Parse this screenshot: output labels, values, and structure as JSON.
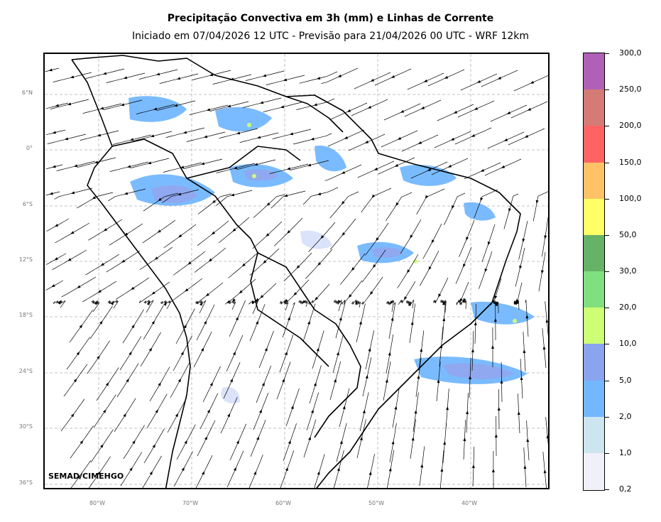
{
  "title": "Precipitação Convectiva em 3h (mm) e Linhas de Corrente",
  "subtitle": "Iniciado em 07/04/2026 12 UTC - Previsão para 21/04/2026 00 UTC - WRF 12km",
  "credit": "SEMAD/CIMEHGO",
  "latitude_labels": [
    "6°N",
    "0°",
    "6°S",
    "12°S",
    "18°S",
    "24°S",
    "30°S",
    "36°S"
  ],
  "longitude_labels": [
    "80°W",
    "70°W",
    "60°W",
    "50°W",
    "40°W"
  ],
  "colorbar": {
    "labels": [
      "300,0",
      "250,0",
      "200,0",
      "150,0",
      "100,0",
      "50,0",
      "30,0",
      "20,0",
      "10,0",
      "5,0",
      "2,0",
      "1,0",
      "0,2"
    ],
    "colors_top_to_bottom": [
      "#b160b8",
      "#d47b75",
      "#ff6363",
      "#ffc266",
      "#ffff66",
      "#66b266",
      "#80e080",
      "#ccff73",
      "#8aa4ef",
      "#73b8ff",
      "#cce5ef",
      "#f0f0fa"
    ]
  },
  "precip_colors": {
    "light": "#d9e2fa",
    "blue": "#73b8ff",
    "mid": "#8aa4ef",
    "green": "#ccff73"
  }
}
